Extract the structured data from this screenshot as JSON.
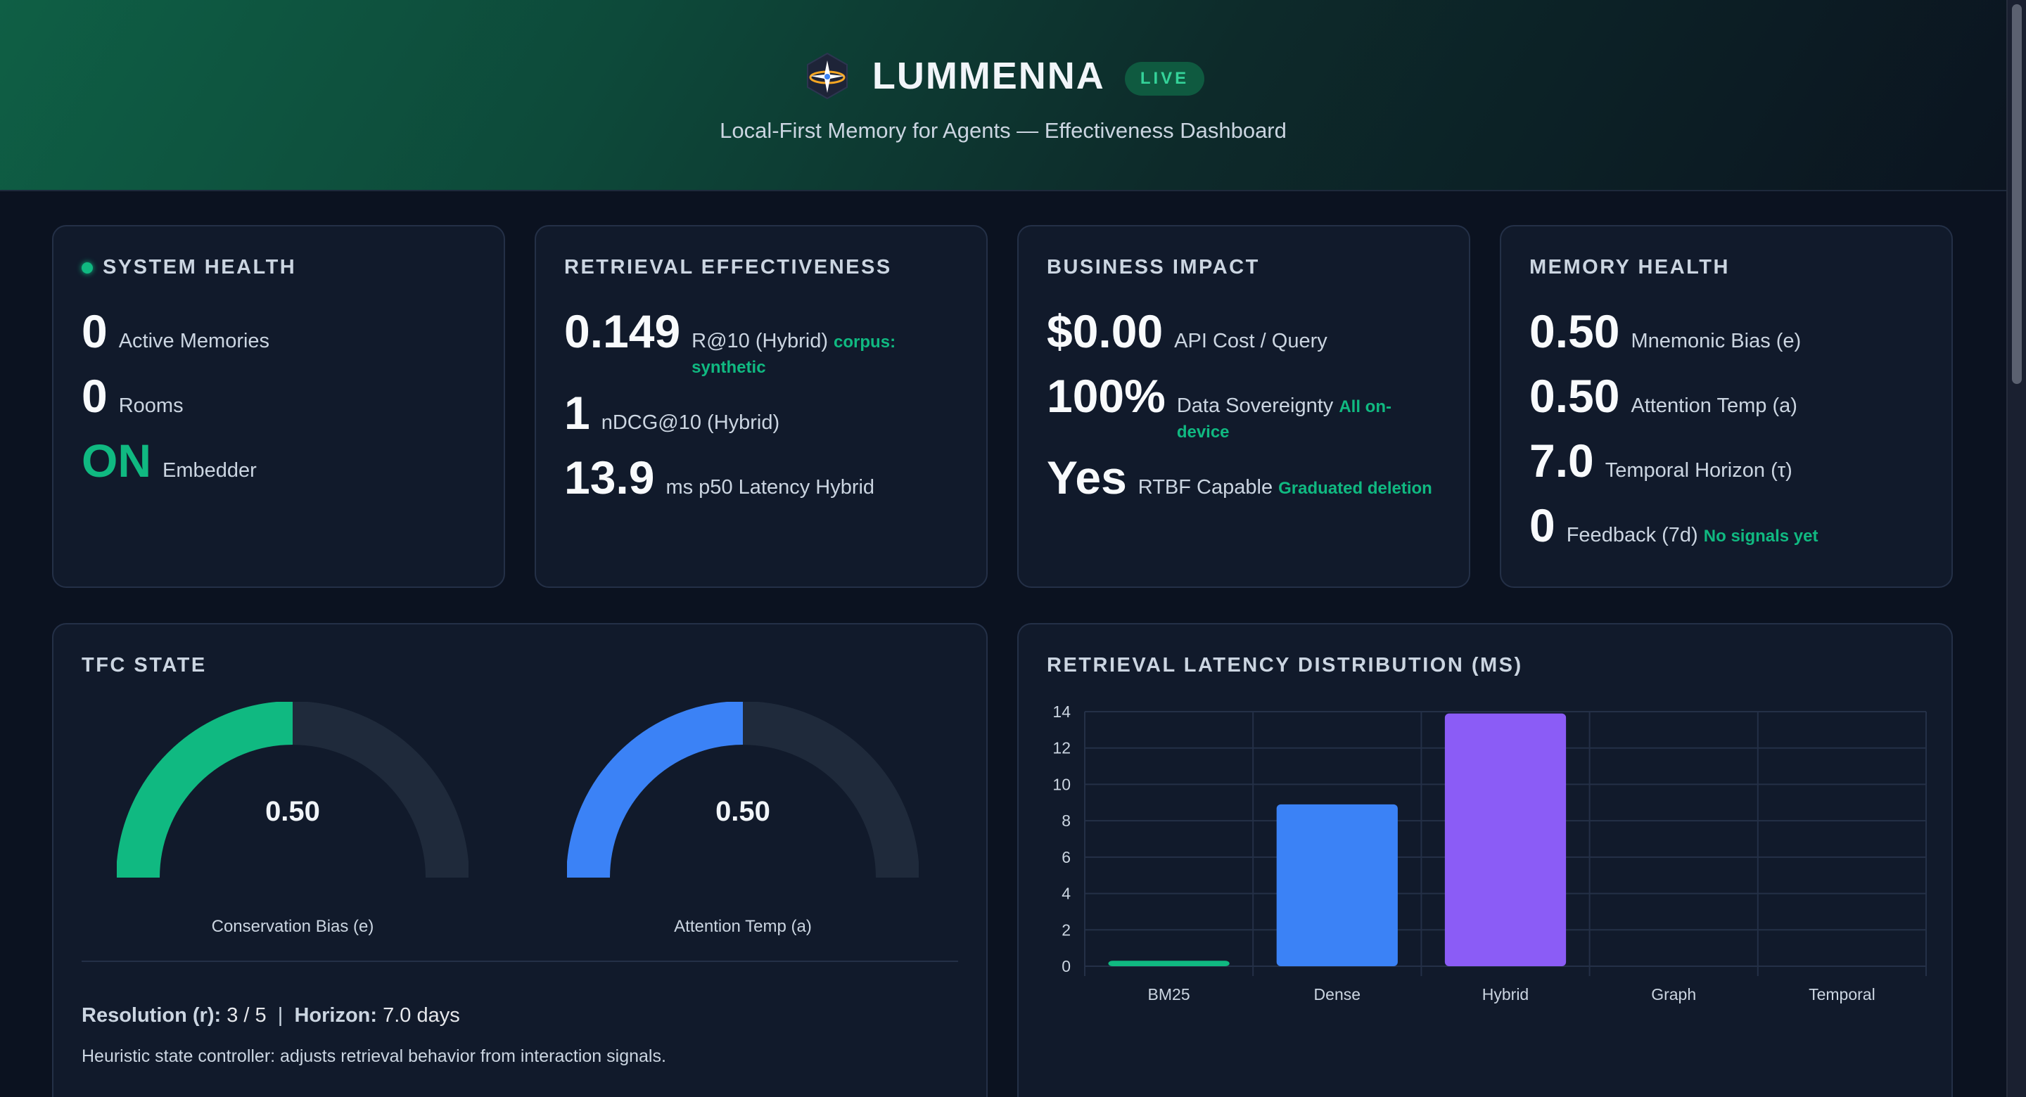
{
  "header": {
    "brand": "LUMMENNA",
    "badge": "LIVE",
    "subtitle": "Local-First Memory for Agents — Effectiveness Dashboard"
  },
  "system_health": {
    "title": "SYSTEM HEALTH",
    "metrics": [
      {
        "value": "0",
        "label": "Active Memories"
      },
      {
        "value": "0",
        "label": "Rooms"
      },
      {
        "value": "ON",
        "label": "Embedder"
      }
    ]
  },
  "retrieval": {
    "title": "RETRIEVAL EFFECTIVENESS",
    "metrics": [
      {
        "value": "0.149",
        "label": "R@10 (Hybrid)",
        "note": "corpus: synthetic"
      },
      {
        "value": "1",
        "label": "nDCG@10 (Hybrid)"
      },
      {
        "value": "13.9",
        "label": "ms p50 Latency Hybrid"
      }
    ]
  },
  "business": {
    "title": "BUSINESS IMPACT",
    "metrics": [
      {
        "value": "$0.00",
        "label": "API Cost / Query"
      },
      {
        "value": "100%",
        "label": "Data Sovereignty",
        "note": "All on-device"
      },
      {
        "value": "Yes",
        "label": "RTBF Capable",
        "note": "Graduated deletion"
      }
    ]
  },
  "memory_health": {
    "title": "MEMORY HEALTH",
    "metrics": [
      {
        "value": "0.50",
        "label": "Mnemonic Bias (e)"
      },
      {
        "value": "0.50",
        "label": "Attention Temp (a)"
      },
      {
        "value": "7.0",
        "label": "Temporal Horizon (τ)"
      },
      {
        "value": "0",
        "label": "Feedback (7d)",
        "note": "No signals yet"
      }
    ]
  },
  "tfc": {
    "title": "TFC STATE",
    "gauges": [
      {
        "value": "0.50",
        "fraction": 0.5,
        "label": "Conservation Bias (e)",
        "color": "#10b981"
      },
      {
        "value": "0.50",
        "fraction": 0.5,
        "label": "Attention Temp (a)",
        "color": "#3b82f6"
      }
    ],
    "resolution_label": "Resolution (r):",
    "resolution_value": "3 / 5",
    "separator": "|",
    "horizon_label": "Horizon:",
    "horizon_value": "7.0 days",
    "description": "Heuristic state controller: adjusts retrieval behavior from interaction signals."
  },
  "latency_chart": {
    "title": "RETRIEVAL LATENCY DISTRIBUTION (MS)"
  },
  "chart_data": {
    "type": "bar",
    "title": "RETRIEVAL LATENCY DISTRIBUTION (MS)",
    "categories": [
      "BM25",
      "Dense",
      "Hybrid",
      "Graph",
      "Temporal"
    ],
    "values": [
      0.3,
      8.9,
      13.9,
      0,
      0
    ],
    "colors": [
      "#10b981",
      "#3b82f6",
      "#8b5cf6",
      "#f59e0b",
      "#ef4444"
    ],
    "ylim": [
      0,
      14
    ],
    "yticks": [
      0,
      2,
      4,
      6,
      8,
      10,
      12,
      14
    ],
    "grid": true,
    "legend": "none"
  },
  "colors": {
    "accent_green": "#10b981",
    "accent_blue": "#3b82f6",
    "accent_purple": "#8b5cf6",
    "background": "#0b1220",
    "card": "#111a2b"
  }
}
